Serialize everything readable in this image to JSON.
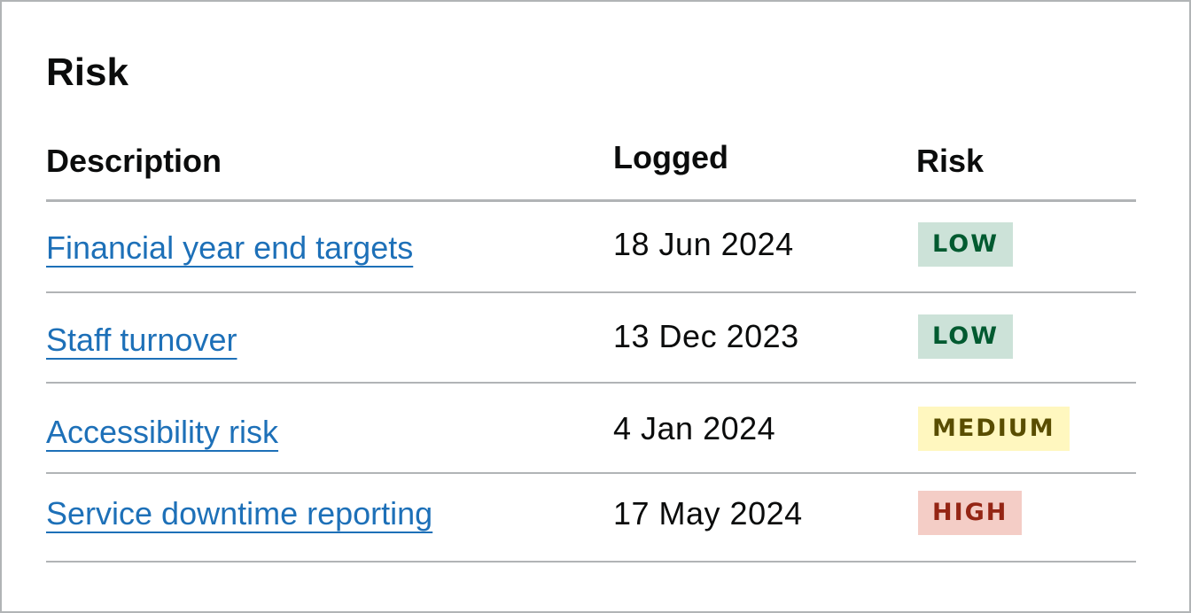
{
  "title": "Risk",
  "table": {
    "headers": {
      "description": "Description",
      "logged": "Logged",
      "risk": "Risk"
    },
    "rows": [
      {
        "description": "Financial year end targets",
        "logged": "18 Jun 2024",
        "risk": "LOW",
        "risk_level": "low"
      },
      {
        "description": "Staff turnover",
        "logged": "13 Dec 2023",
        "risk": "LOW",
        "risk_level": "low"
      },
      {
        "description": "Accessibility risk",
        "logged": "4 Jan 2024",
        "risk": "MEDIUM",
        "risk_level": "medium"
      },
      {
        "description": "Service downtime reporting",
        "logged": "17 May 2024",
        "risk": "HIGH",
        "risk_level": "high"
      }
    ]
  },
  "colors": {
    "link": "#1d70b8",
    "text": "#0b0c0c",
    "border": "#b1b4b6",
    "tag_low_bg": "#cce2d8",
    "tag_low_text": "#005a30",
    "tag_medium_bg": "#fff7bf",
    "tag_medium_text": "#594d00",
    "tag_high_bg": "#f4cdc6",
    "tag_high_text": "#942514"
  }
}
